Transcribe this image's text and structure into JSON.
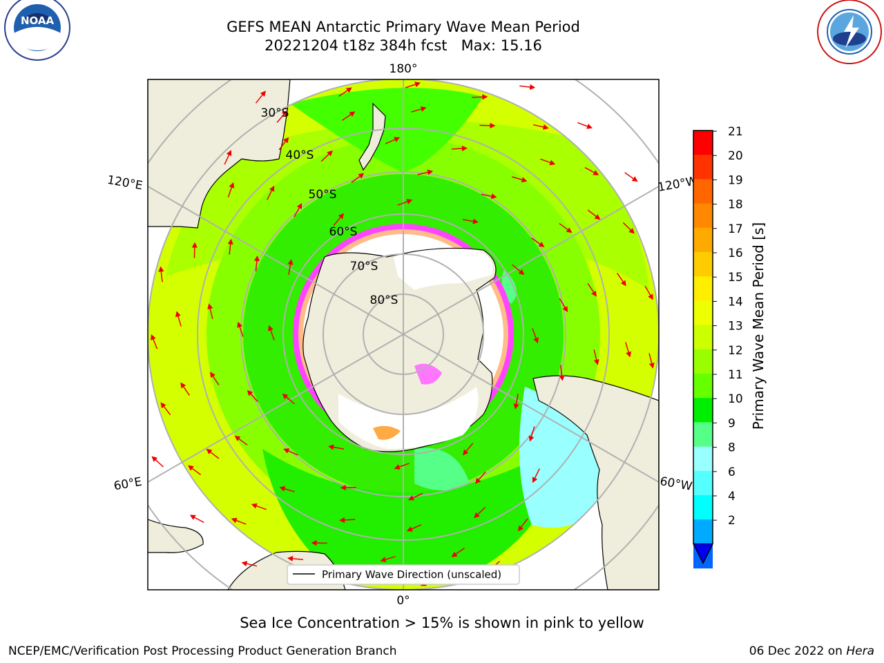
{
  "header": {
    "title_line1": "GEFS MEAN Antarctic Primary Wave Mean Period",
    "title_line2": "20221204 t18z 384h fcst   Max: 15.16"
  },
  "logos": {
    "left": "noaa-logo",
    "left_text": "NOAA",
    "left_ring_text": "NATIONAL OCEANIC AND ATMOSPHERIC ADMINISTRATION · U.S. DEPARTMENT OF COMMERCE",
    "right": "nws-logo",
    "right_ring_text": "NATIONAL WEATHER SERVICE"
  },
  "map": {
    "projection": "south-polar-stereographic",
    "lon_labels": {
      "top": "180°",
      "bottom": "0°",
      "left_upper": "120°E",
      "right_upper": "120°W",
      "left_lower": "60°E",
      "right_lower": "60°W"
    },
    "lat_labels": [
      "30°S",
      "40°S",
      "50°S",
      "60°S",
      "70°S",
      "80°S"
    ],
    "legend": "Primary Wave Direction (unscaled)",
    "colors": {
      "land": "#efeedc",
      "ice_free": "#ffffff",
      "sea_ice_pink": "#ff33ff",
      "sea_ice_orange": "#ffa040",
      "arrow": "#ff0000",
      "grid": "#b0b0b0"
    }
  },
  "colorbar": {
    "label": "Primary Wave Mean Period [s]",
    "ticks": [
      "21",
      "20",
      "19",
      "18",
      "17",
      "16",
      "15",
      "14",
      "13",
      "12",
      "11",
      "10",
      "9",
      "8",
      "6",
      "4",
      "2"
    ],
    "colors": [
      "#ff0000",
      "#ff3300",
      "#ff6600",
      "#ff8800",
      "#ffaa00",
      "#ffcc00",
      "#ffee00",
      "#eeff00",
      "#ccff00",
      "#99ff00",
      "#66ff00",
      "#00ee00",
      "#55ff88",
      "#99ffff",
      "#55ffff",
      "#00ffff",
      "#00aaff",
      "#0066ff"
    ],
    "extend_color": "#0000ee"
  },
  "caption": "Sea Ice Concentration > 15% is shown in pink to yellow",
  "footer": {
    "left": "NCEP/EMC/Verification Post Processing Product Generation Branch",
    "right_date": "06 Dec 2022 on ",
    "right_host": "Hera"
  }
}
